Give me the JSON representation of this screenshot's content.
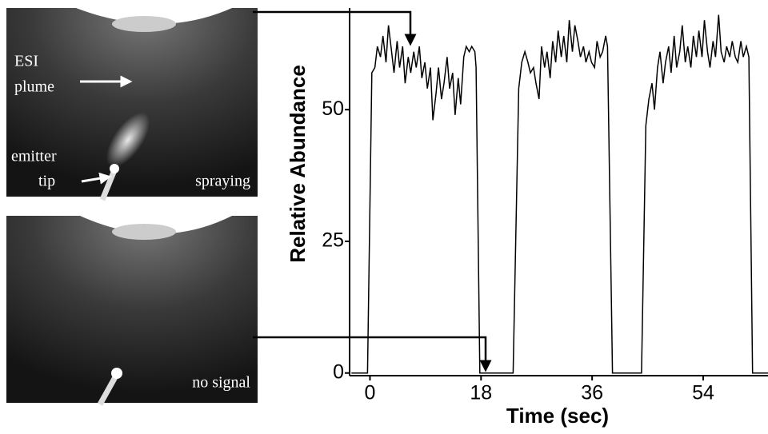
{
  "chart_data": {
    "type": "line",
    "xlabel": "Time (sec)",
    "ylabel": "Relative Abundance",
    "color": "#000000",
    "x": [
      -3,
      -0.4,
      0.3,
      0.8,
      1.2,
      1.7,
      2.1,
      2.6,
      3.0,
      3.5,
      3.9,
      4.4,
      4.8,
      5.3,
      5.7,
      6.2,
      6.6,
      7.1,
      7.5,
      8.0,
      8.4,
      8.9,
      9.3,
      9.8,
      10.2,
      10.7,
      11.1,
      11.6,
      12.0,
      12.5,
      12.9,
      13.4,
      13.8,
      14.3,
      14.7,
      15.2,
      15.6,
      16.1,
      16.5,
      17.0,
      17.2,
      17.8,
      23.2,
      24.1,
      24.6,
      25.1,
      25.6,
      26.0,
      26.5,
      26.9,
      27.4,
      27.8,
      28.3,
      28.7,
      29.2,
      29.6,
      30.1,
      30.5,
      31.0,
      31.4,
      31.9,
      32.3,
      32.8,
      33.2,
      33.7,
      34.1,
      34.6,
      35.0,
      35.5,
      35.9,
      36.4,
      36.8,
      37.3,
      37.7,
      38.2,
      38.5,
      39.3,
      44.0,
      44.7,
      45.2,
      45.7,
      46.1,
      46.6,
      47.0,
      47.5,
      47.9,
      48.4,
      48.8,
      49.3,
      49.7,
      50.2,
      50.6,
      51.1,
      51.5,
      52.0,
      52.4,
      52.9,
      53.3,
      53.8,
      54.2,
      54.7,
      55.1,
      55.6,
      56.0,
      56.5,
      56.9,
      57.4,
      57.8,
      58.3,
      58.7,
      59.2,
      59.6,
      60.1,
      60.5,
      61.0,
      61.4,
      62.0,
      64.5
    ],
    "values": [
      0,
      0,
      57,
      58,
      62,
      60,
      64,
      59,
      66,
      61,
      57,
      63,
      58,
      62,
      55,
      60,
      57,
      61,
      58,
      62,
      56,
      59,
      54,
      58,
      48,
      53,
      58,
      52,
      55,
      60,
      54,
      57,
      49,
      56,
      51,
      60,
      62,
      61,
      62,
      61,
      58,
      0,
      0,
      54,
      59,
      61,
      59,
      57,
      58,
      55,
      52,
      62,
      58,
      61,
      56,
      63,
      59,
      65,
      60,
      64,
      59,
      67,
      61,
      66,
      63,
      60,
      62,
      59,
      61,
      59,
      58,
      63,
      60,
      61,
      64,
      62,
      0,
      0,
      47,
      52,
      55,
      50,
      58,
      61,
      55,
      59,
      62,
      57,
      64,
      58,
      61,
      66,
      59,
      62,
      58,
      64,
      60,
      65,
      60,
      67,
      61,
      58,
      63,
      60,
      68,
      61,
      59,
      62,
      60,
      63,
      60,
      59,
      63,
      60,
      62,
      60,
      0,
      0
    ],
    "xlim": [
      -3.3,
      64.5
    ],
    "xticks": [
      0,
      18,
      36,
      54
    ],
    "ylim": [
      -0.5,
      69.3
    ],
    "yticks": [
      0,
      25,
      50
    ],
    "annotations": [
      "ESI",
      "plume",
      "emitter",
      "tip",
      "spraying",
      "no signal"
    ]
  }
}
